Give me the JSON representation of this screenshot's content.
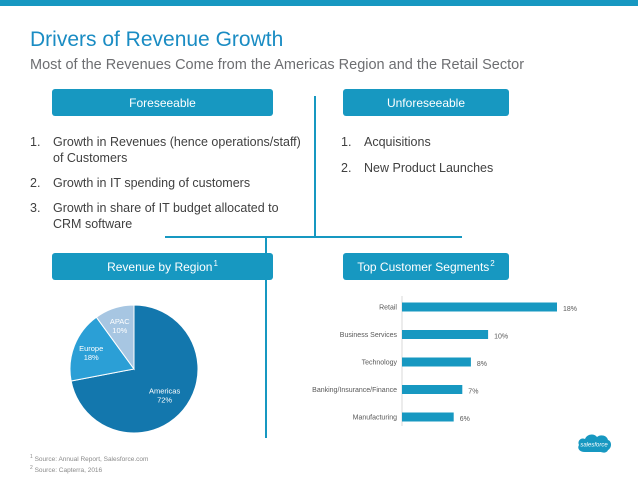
{
  "title": "Drivers of Revenue Growth",
  "subtitle": "Most of the Revenues Come from the Americas Region and the Retail Sector",
  "foreseeable": {
    "header": "Foreseeable",
    "items": [
      {
        "num": "1.",
        "text": "Growth in Revenues (hence operations/staff) of Customers"
      },
      {
        "num": "2.",
        "text": "Growth in IT spending of customers"
      },
      {
        "num": "3.",
        "text": "Growth in share of IT budget allocated to CRM software"
      }
    ]
  },
  "unforeseeable": {
    "header": "Unforeseeable",
    "items": [
      {
        "num": "1.",
        "text": "Acquisitions"
      },
      {
        "num": "2.",
        "text": "New Product Launches"
      }
    ]
  },
  "region_header": "Revenue by Region",
  "region_header_sup": "1",
  "segments_header": "Top Customer Segments",
  "segments_header_sup": "2",
  "footnotes": {
    "f1_sup": "1",
    "f1": "Source: Annual Report, Salesforce.com",
    "f2_sup": "2",
    "f2": "Source: Capterra, 2016"
  },
  "logo_text": "salesforce",
  "colors": {
    "accent": "#1798c1",
    "americas": "#1377ad",
    "europe": "#2b9fd6",
    "apac": "#a7c6e2",
    "bar": "#1798c1"
  },
  "chart_data": [
    {
      "type": "pie",
      "slices": [
        {
          "label": "Americas",
          "value": 72,
          "value_label": "72%"
        },
        {
          "label": "Europe",
          "value": 18,
          "value_label": "18%"
        },
        {
          "label": "APAC",
          "value": 10,
          "value_label": "10%"
        }
      ]
    },
    {
      "type": "bar",
      "orientation": "horizontal",
      "categories": [
        "Retail",
        "Business Services",
        "Technology",
        "Banking/Insurance/Finance",
        "Manufacturing"
      ],
      "values": [
        18,
        10,
        8,
        7,
        6
      ],
      "value_labels": [
        "18%",
        "10%",
        "8%",
        "7%",
        "6%"
      ]
    }
  ]
}
